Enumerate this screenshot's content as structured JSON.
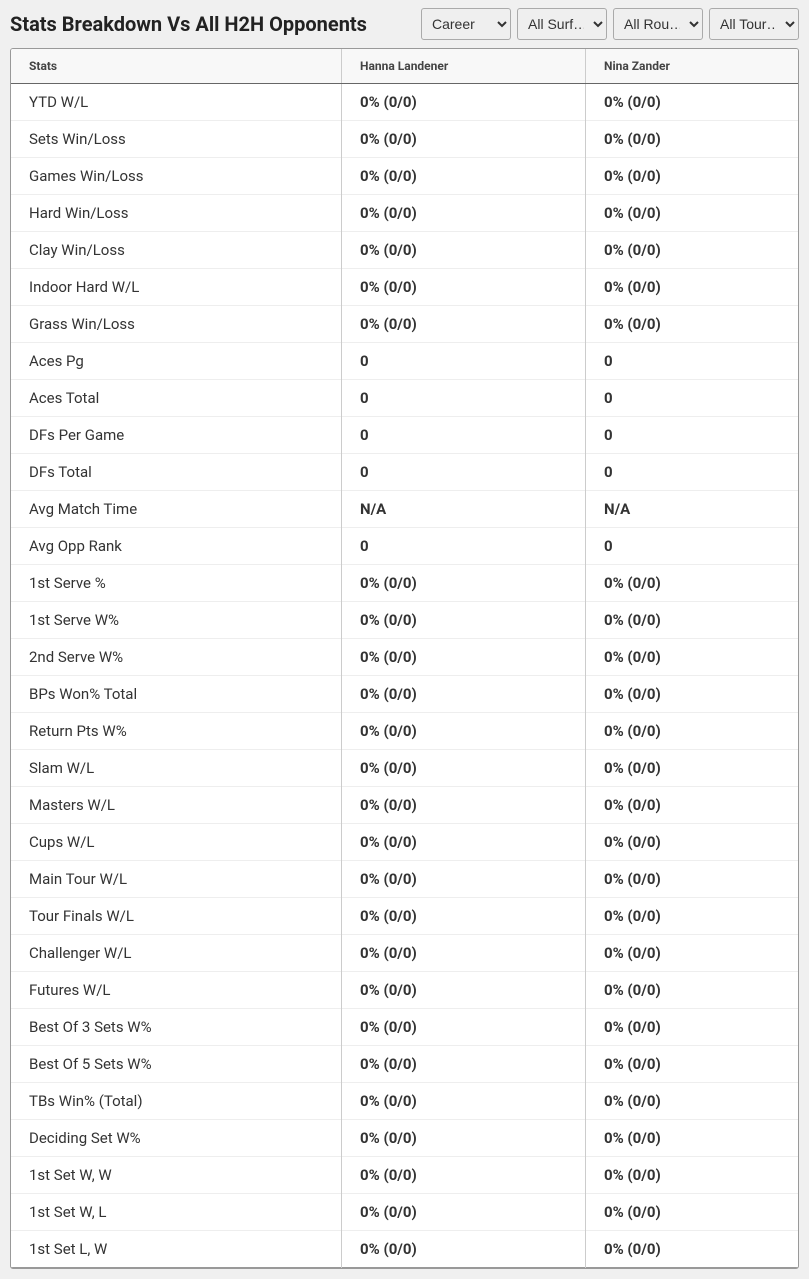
{
  "header": {
    "title": "Stats Breakdown Vs All H2H Opponents"
  },
  "filters": {
    "period": {
      "selected": "Career",
      "options": [
        "Career"
      ]
    },
    "surface": {
      "selected": "All Surf…",
      "options": [
        "All Surf…"
      ]
    },
    "round": {
      "selected": "All Rou…",
      "options": [
        "All Rou…"
      ]
    },
    "tour": {
      "selected": "All Tour…",
      "options": [
        "All Tour…"
      ]
    }
  },
  "table": {
    "columns": [
      "Stats",
      "Hanna Landener",
      "Nina Zander"
    ],
    "rows": [
      {
        "stat": "YTD W/L",
        "p1": "0% (0/0)",
        "p2": "0% (0/0)"
      },
      {
        "stat": "Sets Win/Loss",
        "p1": "0% (0/0)",
        "p2": "0% (0/0)"
      },
      {
        "stat": "Games Win/Loss",
        "p1": "0% (0/0)",
        "p2": "0% (0/0)"
      },
      {
        "stat": "Hard Win/Loss",
        "p1": "0% (0/0)",
        "p2": "0% (0/0)"
      },
      {
        "stat": "Clay Win/Loss",
        "p1": "0% (0/0)",
        "p2": "0% (0/0)"
      },
      {
        "stat": "Indoor Hard W/L",
        "p1": "0% (0/0)",
        "p2": "0% (0/0)"
      },
      {
        "stat": "Grass Win/Loss",
        "p1": "0% (0/0)",
        "p2": "0% (0/0)"
      },
      {
        "stat": "Aces Pg",
        "p1": "0",
        "p2": "0"
      },
      {
        "stat": "Aces Total",
        "p1": "0",
        "p2": "0"
      },
      {
        "stat": "DFs Per Game",
        "p1": "0",
        "p2": "0"
      },
      {
        "stat": "DFs Total",
        "p1": "0",
        "p2": "0"
      },
      {
        "stat": "Avg Match Time",
        "p1": "N/A",
        "p2": "N/A"
      },
      {
        "stat": "Avg Opp Rank",
        "p1": "0",
        "p2": "0"
      },
      {
        "stat": "1st Serve %",
        "p1": "0% (0/0)",
        "p2": "0% (0/0)"
      },
      {
        "stat": "1st Serve W%",
        "p1": "0% (0/0)",
        "p2": "0% (0/0)"
      },
      {
        "stat": "2nd Serve W%",
        "p1": "0% (0/0)",
        "p2": "0% (0/0)"
      },
      {
        "stat": "BPs Won% Total",
        "p1": "0% (0/0)",
        "p2": "0% (0/0)"
      },
      {
        "stat": "Return Pts W%",
        "p1": "0% (0/0)",
        "p2": "0% (0/0)"
      },
      {
        "stat": "Slam W/L",
        "p1": "0% (0/0)",
        "p2": "0% (0/0)"
      },
      {
        "stat": "Masters W/L",
        "p1": "0% (0/0)",
        "p2": "0% (0/0)"
      },
      {
        "stat": "Cups W/L",
        "p1": "0% (0/0)",
        "p2": "0% (0/0)"
      },
      {
        "stat": "Main Tour W/L",
        "p1": "0% (0/0)",
        "p2": "0% (0/0)"
      },
      {
        "stat": "Tour Finals W/L",
        "p1": "0% (0/0)",
        "p2": "0% (0/0)"
      },
      {
        "stat": "Challenger W/L",
        "p1": "0% (0/0)",
        "p2": "0% (0/0)"
      },
      {
        "stat": "Futures W/L",
        "p1": "0% (0/0)",
        "p2": "0% (0/0)"
      },
      {
        "stat": "Best Of 3 Sets W%",
        "p1": "0% (0/0)",
        "p2": "0% (0/0)"
      },
      {
        "stat": "Best Of 5 Sets W%",
        "p1": "0% (0/0)",
        "p2": "0% (0/0)"
      },
      {
        "stat": "TBs Win% (Total)",
        "p1": "0% (0/0)",
        "p2": "0% (0/0)"
      },
      {
        "stat": "Deciding Set W%",
        "p1": "0% (0/0)",
        "p2": "0% (0/0)"
      },
      {
        "stat": "1st Set W, W",
        "p1": "0% (0/0)",
        "p2": "0% (0/0)"
      },
      {
        "stat": "1st Set W, L",
        "p1": "0% (0/0)",
        "p2": "0% (0/0)"
      },
      {
        "stat": "1st Set L, W",
        "p1": "0% (0/0)",
        "p2": "0% (0/0)"
      }
    ]
  },
  "style": {
    "background_color": "#f0f0f0",
    "table_background": "#ffffff",
    "header_row_background": "#f8f8f8",
    "border_color": "#999999",
    "cell_border_color": "#cccccc",
    "text_color": "#333333",
    "title_fontsize": 20,
    "header_fontsize": 12,
    "cell_fontsize": 15
  }
}
